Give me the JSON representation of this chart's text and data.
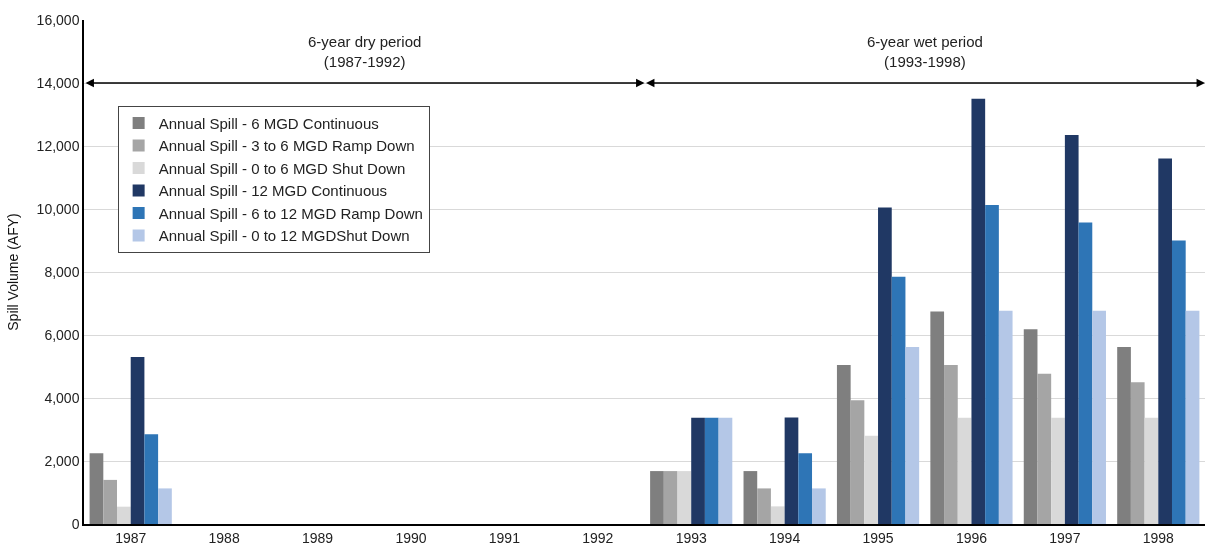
{
  "chart_data": {
    "type": "bar",
    "ylabel": "Spill Volume (AFY)",
    "categories": [
      "1987",
      "1988",
      "1989",
      "1990",
      "1991",
      "1992",
      "1993",
      "1994",
      "1995",
      "1996",
      "1997",
      "1998"
    ],
    "series": [
      {
        "name": "Annual Spill - 6 MGD Continuous",
        "color": "#7f7f7f",
        "values": [
          2250,
          0,
          0,
          0,
          0,
          0,
          1680,
          1680,
          5050,
          6750,
          6180,
          5620
        ]
      },
      {
        "name": "Annual Spill - 3 to 6 MGD Ramp Down",
        "color": "#a5a5a5",
        "values": [
          1400,
          0,
          0,
          0,
          0,
          0,
          1680,
          1130,
          3930,
          5050,
          4770,
          4500
        ]
      },
      {
        "name": "Annual Spill - 0 to 6 MGD Shut Down",
        "color": "#d9d9d9",
        "values": [
          550,
          0,
          0,
          0,
          0,
          0,
          1680,
          560,
          2800,
          3370,
          3370,
          3370
        ]
      },
      {
        "name": "Annual Spill - 12 MGD Continuous",
        "color": "#203864",
        "values": [
          5300,
          0,
          0,
          0,
          0,
          0,
          3370,
          3380,
          10050,
          13500,
          12350,
          11600
        ]
      },
      {
        "name": "Annual Spill - 6 to 12 MGD Ramp Down",
        "color": "#2e75b6",
        "values": [
          2850,
          0,
          0,
          0,
          0,
          0,
          3370,
          2250,
          7850,
          10130,
          9570,
          9000
        ]
      },
      {
        "name": "Annual Spill - 0 to 12 MGDShut Down",
        "color": "#b4c7e7",
        "values": [
          1130,
          0,
          0,
          0,
          0,
          0,
          3370,
          1130,
          5620,
          6770,
          6770,
          6770
        ]
      }
    ],
    "ylim": [
      0,
      16000
    ],
    "yticks": [
      {
        "value": 0,
        "label": "0"
      },
      {
        "value": 2000,
        "label": "2,000"
      },
      {
        "value": 4000,
        "label": "4,000"
      },
      {
        "value": 6000,
        "label": "6,000"
      },
      {
        "value": 8000,
        "label": "8,000"
      },
      {
        "value": 10000,
        "label": "10,000"
      },
      {
        "value": 12000,
        "label": "12,000"
      },
      {
        "value": 14000,
        "label": "14,000"
      },
      {
        "value": 16000,
        "label": "16,000"
      }
    ],
    "annotations": [
      "6-year dry period\n(1987-1992)",
      "6-year wet period\n(1993-1998)"
    ],
    "grid": "y",
    "legend": "top left"
  }
}
